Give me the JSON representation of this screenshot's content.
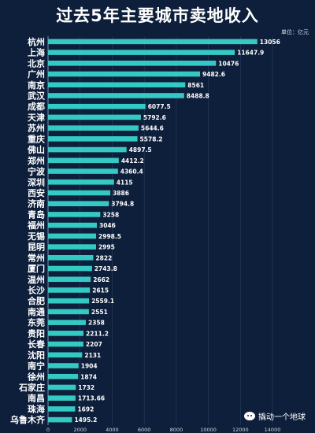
{
  "header": {
    "title": "过去5年主要城市卖地收入",
    "unit": "单位：亿元"
  },
  "watermark": {
    "icon": "wechat-icon",
    "text": "撬动一个地球"
  },
  "colors": {
    "background": "#0d1f3a",
    "bar": "#35c9c4",
    "grid": "#2a3f5f"
  },
  "chart_data": {
    "type": "bar",
    "orientation": "horizontal",
    "title": "过去5年主要城市卖地收入",
    "unit": "单位：亿元",
    "xlim": [
      0,
      14000
    ],
    "xticks": [
      0,
      2000,
      4000,
      6000,
      8000,
      10000,
      12000,
      14000
    ],
    "grid": true,
    "categories": [
      "杭州",
      "上海",
      "北京",
      "广州",
      "南京",
      "武汉",
      "成都",
      "天津",
      "苏州",
      "重庆",
      "佛山",
      "郑州",
      "宁波",
      "深圳",
      "西安",
      "济南",
      "青岛",
      "福州",
      "无锡",
      "昆明",
      "常州",
      "厦门",
      "温州",
      "长沙",
      "合肥",
      "南通",
      "东莞",
      "贵阳",
      "长春",
      "沈阳",
      "南宁",
      "徐州",
      "石家庄",
      "南昌",
      "珠海",
      "乌鲁木齐"
    ],
    "values": [
      13056,
      11647.9,
      10476,
      9482.6,
      8561,
      8488.8,
      6077.5,
      5792.6,
      5644.6,
      5578.2,
      4897.5,
      4412.2,
      4360.4,
      4115,
      3886,
      3794.8,
      3258,
      3046,
      2998.5,
      2995,
      2822,
      2743.8,
      2662,
      2615,
      2559.1,
      2551,
      2358,
      2211.2,
      2207,
      2131,
      1904,
      1874,
      1732,
      1713.66,
      1692,
      1495.2
    ],
    "value_labels": [
      "13056",
      "11647.9",
      "10476",
      "9482.6",
      "8561",
      "8488.8",
      "6077.5",
      "5792.6",
      "5644.6",
      "5578.2",
      "4897.5",
      "4412.2",
      "4360.4",
      "4115",
      "3886",
      "3794.8",
      "3258",
      "3046",
      "2998.5",
      "2995",
      "2822",
      "2743.8",
      "2662",
      "2615",
      "2559.1",
      "2551",
      "2358",
      "2211.2",
      "2207",
      "2131",
      "1904",
      "1874",
      "1732",
      "1713.66",
      "1692",
      "1495.2"
    ]
  }
}
